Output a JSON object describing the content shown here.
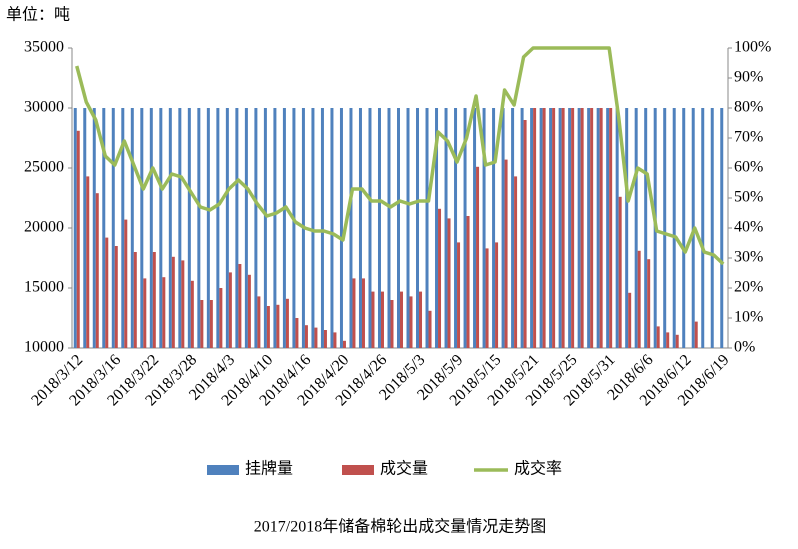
{
  "chart_data": {
    "type": "bar-line",
    "title": "2017/2018年储备棉轮出成交量情况走势图",
    "ylabel": "单位：吨",
    "categories": [
      "2018/3/12",
      null,
      null,
      null,
      "2018/3/16",
      null,
      null,
      null,
      "2018/3/22",
      null,
      null,
      null,
      "2018/3/28",
      null,
      null,
      null,
      "2018/4/3",
      null,
      null,
      null,
      "2018/4/10",
      null,
      null,
      null,
      "2018/4/16",
      null,
      null,
      null,
      "2018/4/20",
      null,
      null,
      null,
      "2018/4/26",
      null,
      null,
      null,
      "2018/5/3",
      null,
      null,
      null,
      "2018/5/9",
      null,
      null,
      null,
      "2018/5/15",
      null,
      null,
      null,
      "2018/5/21",
      null,
      null,
      null,
      "2018/5/25",
      null,
      null,
      null,
      "2018/5/31",
      null,
      null,
      null,
      "2018/6/6",
      null,
      null,
      null,
      "2018/6/12",
      null,
      null,
      null,
      "2018/6/19"
    ],
    "series": [
      {
        "name": "挂牌量",
        "type": "bar",
        "color": "#4f81bd",
        "values": [
          30000,
          30000,
          30000,
          30000,
          30000,
          30000,
          30000,
          30000,
          30000,
          30000,
          30000,
          30000,
          30000,
          30000,
          30000,
          30000,
          30000,
          30000,
          30000,
          30000,
          30000,
          30000,
          30000,
          30000,
          30000,
          30000,
          30000,
          30000,
          30000,
          30000,
          30000,
          30000,
          30000,
          30000,
          30000,
          30000,
          30000,
          30000,
          30000,
          30000,
          30000,
          30000,
          30000,
          30000,
          30000,
          30000,
          30000,
          30000,
          30000,
          30000,
          30000,
          30000,
          30000,
          30000,
          30000,
          30000,
          30000,
          30000,
          30000,
          30000,
          30000,
          30000,
          30000,
          30000,
          30000,
          30000,
          30000,
          30000,
          30000
        ]
      },
      {
        "name": "成交量",
        "type": "bar",
        "color": "#c0504d",
        "values": [
          28100,
          24300,
          22900,
          19200,
          18500,
          20700,
          18000,
          15800,
          18000,
          15900,
          17600,
          17300,
          15600,
          14000,
          14000,
          15000,
          16300,
          17000,
          16100,
          14300,
          13500,
          13600,
          14100,
          12500,
          11900,
          11700,
          11500,
          11300,
          10600,
          15800,
          15800,
          14700,
          14700,
          14000,
          14700,
          14300,
          14700,
          13100,
          21600,
          20800,
          18800,
          21000,
          25100,
          18300,
          18800,
          25700,
          24300,
          29000,
          30000,
          30000,
          30000,
          30000,
          30000,
          30000,
          30000,
          30000,
          30000,
          22600,
          14600,
          18100,
          17400,
          11800,
          11300,
          11100,
          null,
          12200,
          null,
          null,
          null
        ]
      },
      {
        "name": "成交率",
        "type": "line",
        "axis": "y2",
        "color": "#9bbb59",
        "values": [
          94,
          82,
          76,
          64,
          61,
          69,
          61,
          53,
          60,
          53,
          58,
          57,
          52,
          47,
          46,
          48,
          53,
          56,
          53,
          48,
          44,
          45,
          47,
          42,
          40,
          39,
          39,
          38,
          36,
          53,
          53,
          49,
          49,
          47,
          49,
          48,
          49,
          49,
          72,
          69,
          62,
          70,
          84,
          61,
          62,
          86,
          81,
          97,
          100,
          100,
          100,
          100,
          100,
          100,
          100,
          100,
          100,
          77,
          49,
          60,
          58,
          39,
          38,
          37,
          32,
          40,
          32,
          31,
          28
        ]
      }
    ],
    "ylim": [
      10000,
      35000
    ],
    "yticks": [
      10000,
      15000,
      20000,
      25000,
      30000,
      35000
    ],
    "y2lim": [
      0,
      100
    ],
    "y2ticks": [
      {
        "value": 0,
        "label": "0%"
      },
      {
        "value": 10,
        "label": "10%"
      },
      {
        "value": 20,
        "label": "20%"
      },
      {
        "value": 30,
        "label": "30%"
      },
      {
        "value": 40,
        "label": "40%"
      },
      {
        "value": 50,
        "label": "50%"
      },
      {
        "value": 60,
        "label": "60%"
      },
      {
        "value": 70,
        "label": "70%"
      },
      {
        "value": 80,
        "label": "80%"
      },
      {
        "value": 90,
        "label": "90%"
      },
      {
        "value": 100,
        "label": "100%"
      }
    ]
  }
}
